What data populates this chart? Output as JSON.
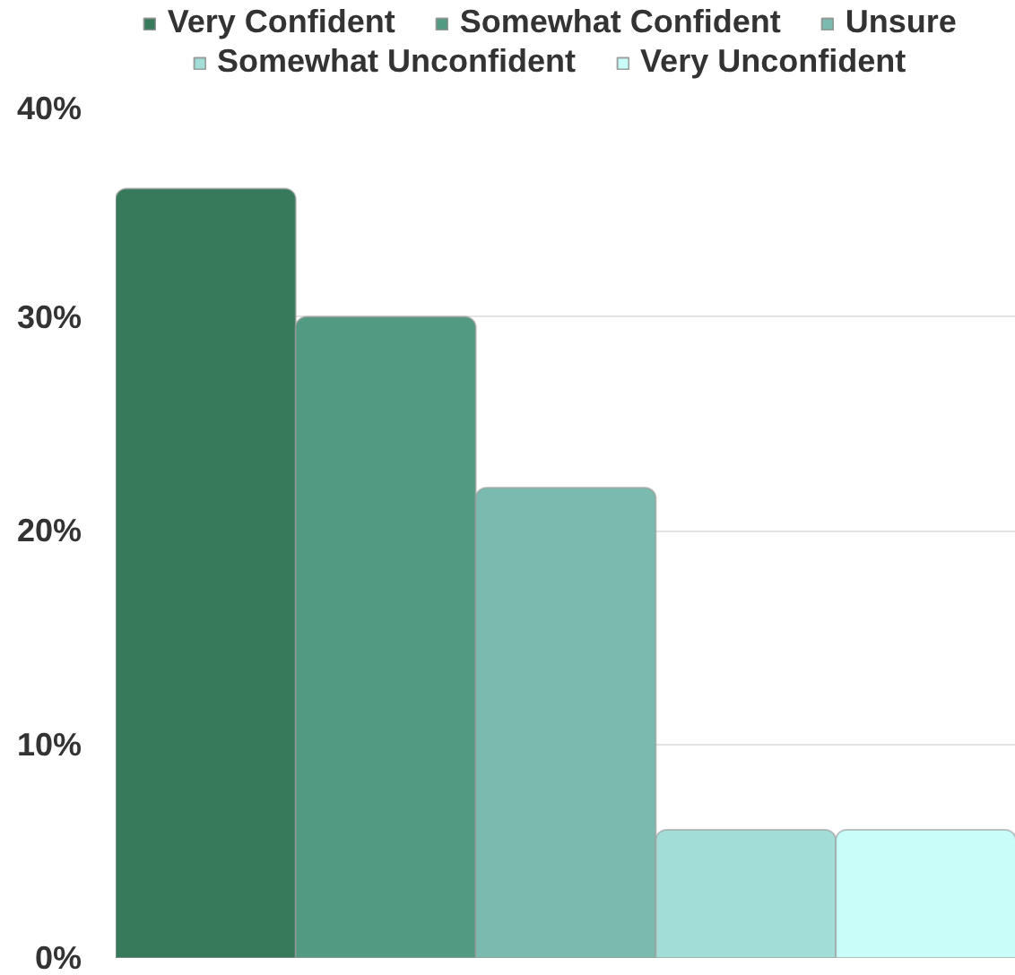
{
  "chart_data": {
    "type": "bar",
    "categories": [
      null
    ],
    "series": [
      {
        "name": "Very Confident",
        "color": "#367a5b",
        "values": [
          36
        ]
      },
      {
        "name": "Somewhat Confident",
        "color": "#539a82",
        "values": [
          30
        ]
      },
      {
        "name": "Unsure",
        "color": "#7bbaae",
        "values": [
          22
        ]
      },
      {
        "name": "Somewhat Unconfident",
        "color": "#a2ddd7",
        "values": [
          6
        ]
      },
      {
        "name": "Very Unconfident",
        "color": "#c8fdfa",
        "values": [
          6
        ]
      }
    ],
    "ylim": [
      0,
      40
    ],
    "yticks": [
      {
        "value": 0,
        "label": "0%"
      },
      {
        "value": 10,
        "label": "10%"
      },
      {
        "value": 20,
        "label": "20%"
      },
      {
        "value": 30,
        "label": "30%"
      },
      {
        "value": 40,
        "label": "40%"
      }
    ],
    "grid": "y",
    "legend": "top",
    "tick_labels": "y"
  }
}
